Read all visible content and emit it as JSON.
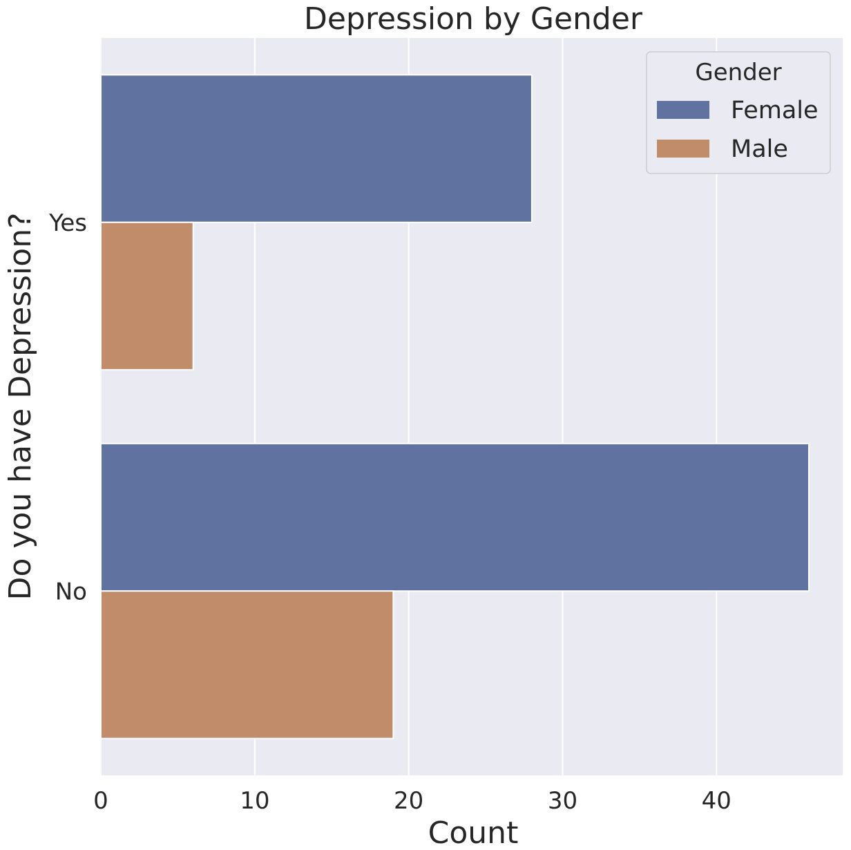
{
  "chart_data": {
    "type": "bar",
    "orientation": "horizontal",
    "title": "Depression by Gender",
    "xlabel": "Count",
    "ylabel": "Do you have Depression?",
    "categories": [
      "Yes",
      "No"
    ],
    "series": [
      {
        "name": "Female",
        "values": [
          28,
          46
        ],
        "color": "#5f72a0"
      },
      {
        "name": "Male",
        "values": [
          6,
          19
        ],
        "color": "#c18c69"
      }
    ],
    "xlim": [
      0,
      48.2
    ],
    "xticks": [
      0,
      10,
      20,
      30,
      40
    ],
    "xtick_labels": [
      "0",
      "10",
      "20",
      "30",
      "40"
    ],
    "grid": true,
    "grid_axis": "x",
    "background_color": "#eaeaf2",
    "legend": {
      "title": "Gender",
      "placement": "top-right",
      "entries": [
        "Female",
        "Male"
      ]
    }
  }
}
